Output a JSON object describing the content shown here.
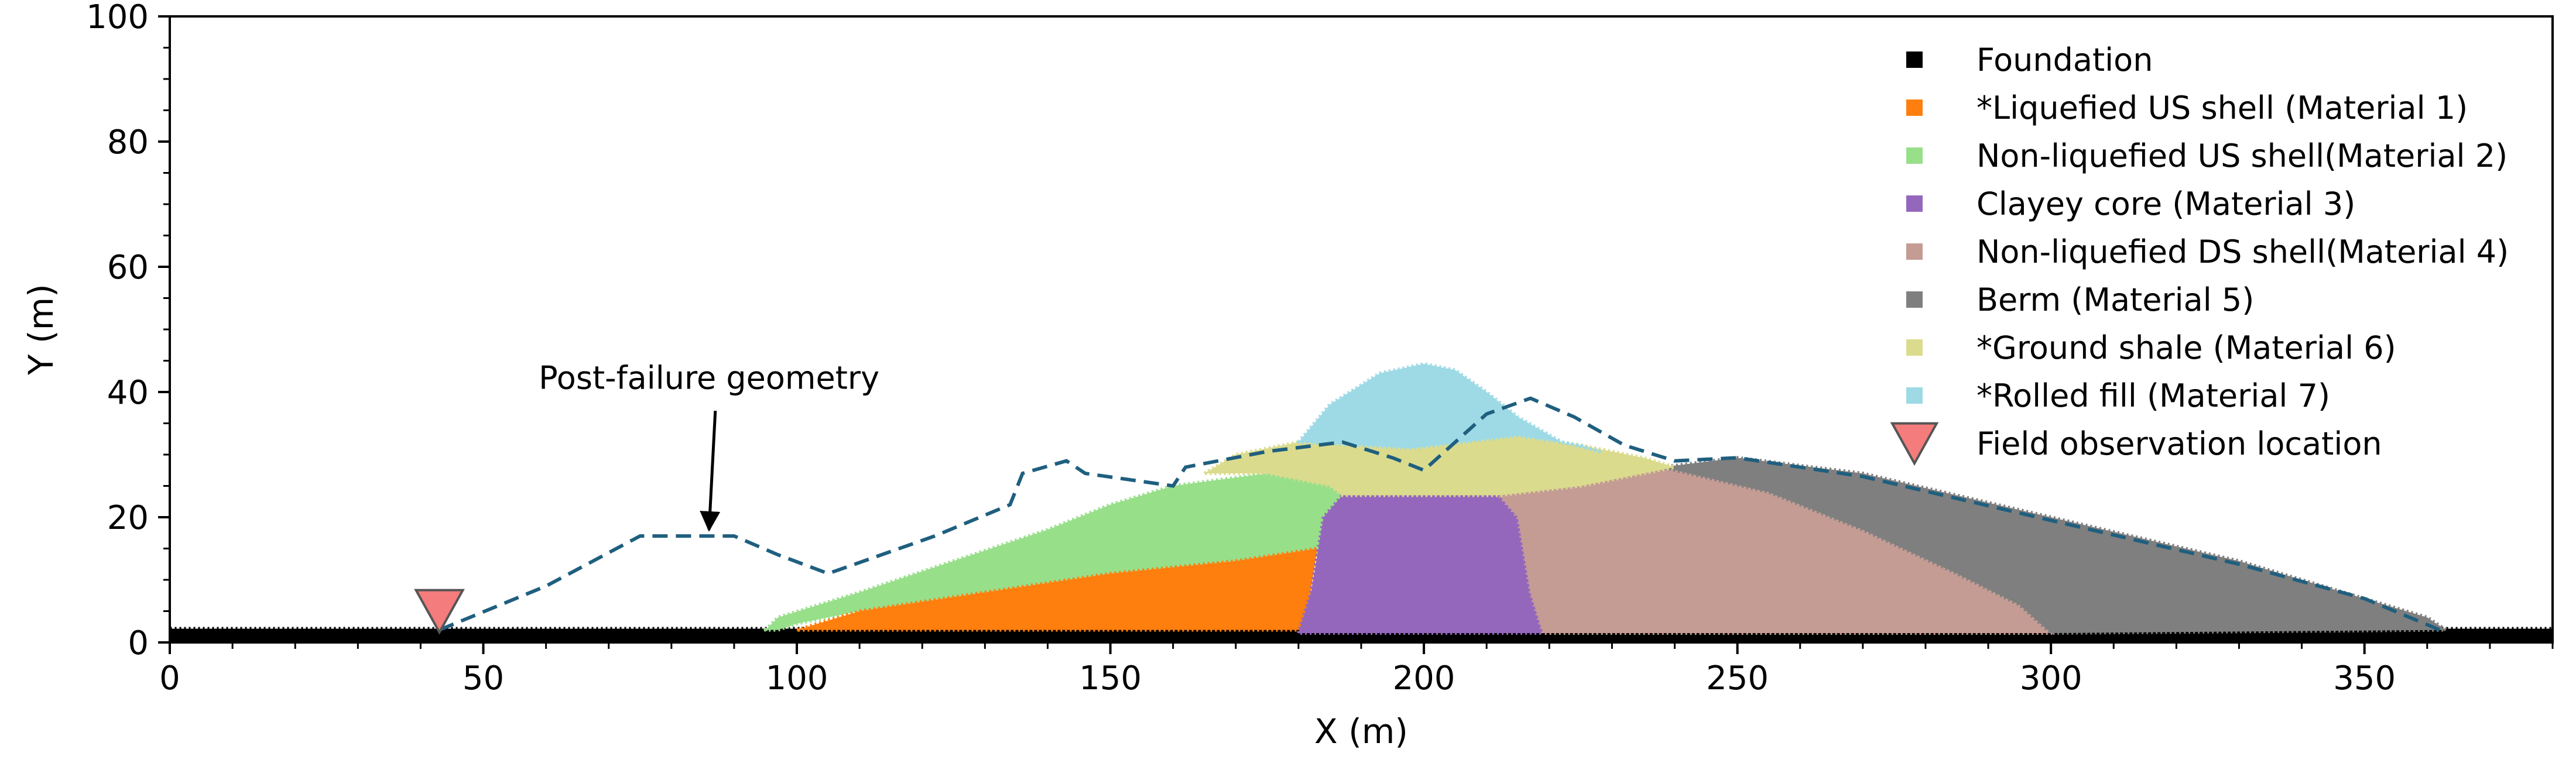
{
  "chart_data": {
    "type": "area",
    "xlabel": "X (m)",
    "ylabel": "Y (m)",
    "xlim": [
      0,
      380
    ],
    "ylim": [
      0,
      100
    ],
    "xticks": [
      0,
      50,
      100,
      150,
      200,
      250,
      300,
      350
    ],
    "yticks": [
      0,
      20,
      40,
      60,
      80,
      100
    ],
    "grid": false,
    "legend_position": "top-right",
    "colors": {
      "foundation": "#000000",
      "material1": "#ff7f0e",
      "material2": "#98df8a",
      "material3": "#9467bd",
      "material4": "#c49c94",
      "material5": "#7f7f7f",
      "material6": "#dbdb8d",
      "material7": "#9edae5",
      "observation": "#f47c7c",
      "failure_line": "#1f5f7f"
    },
    "legend": [
      {
        "key": "foundation",
        "label": "Foundation",
        "marker": "square"
      },
      {
        "key": "material1",
        "label": "*Liquefied US shell (Material 1)",
        "marker": "square"
      },
      {
        "key": "material2",
        "label": "Non-liquefied US shell(Material 2)",
        "marker": "square"
      },
      {
        "key": "material3",
        "label": "Clayey core (Material 3)",
        "marker": "square"
      },
      {
        "key": "material4",
        "label": "Non-liquefied DS shell(Material 4)",
        "marker": "square"
      },
      {
        "key": "material5",
        "label": "Berm (Material 5)",
        "marker": "square"
      },
      {
        "key": "material6",
        "label": "*Ground shale (Material 6)",
        "marker": "square"
      },
      {
        "key": "material7",
        "label": "*Rolled fill (Material 7)",
        "marker": "square"
      },
      {
        "key": "observation",
        "label": "Field observation location",
        "marker": "triangle"
      }
    ],
    "regions": [
      {
        "key": "foundation",
        "points": [
          [
            0,
            0
          ],
          [
            380,
            0
          ],
          [
            380,
            2.2
          ],
          [
            0,
            2.2
          ]
        ]
      },
      {
        "key": "material2",
        "points": [
          [
            95,
            2
          ],
          [
            97,
            4
          ],
          [
            110,
            8
          ],
          [
            125,
            13
          ],
          [
            140,
            18
          ],
          [
            150,
            22
          ],
          [
            160,
            25
          ],
          [
            175,
            27
          ],
          [
            190,
            28
          ],
          [
            190,
            17
          ],
          [
            183,
            14
          ],
          [
            170,
            13
          ],
          [
            150,
            11
          ],
          [
            130,
            8
          ],
          [
            110,
            5
          ],
          [
            100,
            3
          ],
          [
            97,
            2
          ]
        ]
      },
      {
        "key": "material1",
        "points": [
          [
            100,
            2
          ],
          [
            110,
            5
          ],
          [
            130,
            8
          ],
          [
            150,
            11
          ],
          [
            170,
            13
          ],
          [
            183,
            15
          ],
          [
            181,
            2
          ]
        ]
      },
      {
        "key": "material3",
        "points": [
          [
            180,
            1.5
          ],
          [
            182,
            8
          ],
          [
            184,
            20
          ],
          [
            187,
            23.5
          ],
          [
            212,
            23.5
          ],
          [
            215,
            20
          ],
          [
            217,
            8
          ],
          [
            219,
            1.5
          ]
        ]
      },
      {
        "key": "material4",
        "points": [
          [
            219,
            1.5
          ],
          [
            217,
            8
          ],
          [
            215,
            20
          ],
          [
            212,
            23.5
          ],
          [
            225,
            25
          ],
          [
            238,
            28
          ],
          [
            255,
            24
          ],
          [
            270,
            18
          ],
          [
            285,
            11
          ],
          [
            295,
            6
          ],
          [
            300,
            2
          ],
          [
            300,
            1.5
          ]
        ]
      },
      {
        "key": "material5",
        "points": [
          [
            238,
            28
          ],
          [
            250,
            29.5
          ],
          [
            270,
            27
          ],
          [
            300,
            20
          ],
          [
            330,
            13
          ],
          [
            350,
            7
          ],
          [
            360,
            4
          ],
          [
            363,
            2
          ],
          [
            300,
            1.5
          ],
          [
            295,
            6
          ],
          [
            285,
            11
          ],
          [
            270,
            18
          ],
          [
            255,
            24
          ]
        ]
      },
      {
        "key": "material6",
        "points": [
          [
            165,
            27
          ],
          [
            170,
            30
          ],
          [
            180,
            32
          ],
          [
            198,
            31
          ],
          [
            215,
            33
          ],
          [
            225,
            31.5
          ],
          [
            235,
            29.5
          ],
          [
            240,
            28
          ],
          [
            225,
            25
          ],
          [
            212,
            23.5
          ],
          [
            187,
            23.5
          ],
          [
            185,
            25
          ],
          [
            175,
            27
          ]
        ]
      },
      {
        "key": "material7",
        "points": [
          [
            180,
            32
          ],
          [
            185,
            38
          ],
          [
            193,
            43
          ],
          [
            200,
            44.5
          ],
          [
            205,
            43.5
          ],
          [
            210,
            40
          ],
          [
            215,
            36
          ],
          [
            222,
            32
          ],
          [
            228,
            30.5
          ],
          [
            225,
            31.5
          ],
          [
            215,
            33
          ],
          [
            198,
            31
          ]
        ]
      }
    ],
    "failure_geometry": [
      [
        43,
        2
      ],
      [
        60,
        9
      ],
      [
        75,
        17
      ],
      [
        90,
        17
      ],
      [
        97,
        14
      ],
      [
        105,
        11
      ],
      [
        122,
        17
      ],
      [
        134,
        22
      ],
      [
        136,
        27
      ],
      [
        143,
        29
      ],
      [
        146,
        27
      ],
      [
        160,
        25
      ],
      [
        162,
        28
      ],
      [
        175,
        30.5
      ],
      [
        187,
        32
      ],
      [
        195,
        29.5
      ],
      [
        200,
        27.5
      ],
      [
        210,
        36.5
      ],
      [
        217,
        39
      ],
      [
        224,
        36
      ],
      [
        232,
        31.5
      ],
      [
        240,
        29
      ],
      [
        250,
        29.5
      ],
      [
        270,
        26.5
      ],
      [
        300,
        19.5
      ],
      [
        330,
        12.5
      ],
      [
        350,
        7
      ],
      [
        362,
        2
      ]
    ],
    "observation": {
      "x": 43,
      "y": 2
    },
    "annotations": [
      {
        "text": "Post-failure geometry",
        "text_x": 86,
        "text_y": 40.5,
        "arrow_from": [
          87,
          37
        ],
        "arrow_to": [
          86,
          18
        ]
      }
    ]
  }
}
